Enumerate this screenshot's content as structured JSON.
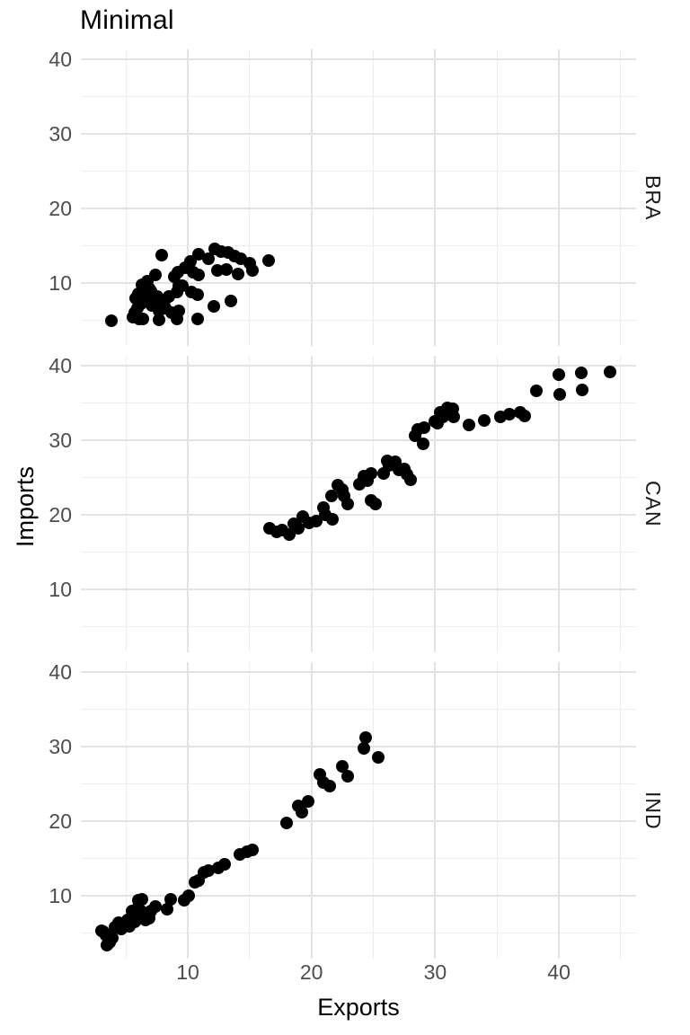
{
  "title": "Minimal",
  "colors": {
    "background": "#ffffff",
    "point": "#000000",
    "grid_major": "#e2e2e2",
    "grid_minor": "#ededed",
    "tick_text": "#4d4d4d",
    "strip_text": "#1a1a1a",
    "title_text": "#000000"
  },
  "chart_data": {
    "type": "scatter",
    "title": "Minimal",
    "xlabel": "Exports",
    "ylabel": "Imports",
    "legend_position": "none",
    "grid": true,
    "facet_axis": "rows",
    "facet_labels": [
      "BRA",
      "CAN",
      "IND"
    ],
    "x_ticks": [
      10,
      20,
      30,
      40
    ],
    "y_ticks": [
      40,
      30,
      20,
      10
    ],
    "x_minor_ticks": [
      5,
      15,
      25,
      35,
      45
    ],
    "y_minor_ticks": [
      35,
      25,
      15,
      5
    ],
    "xlim": [
      1.4,
      46.2
    ],
    "ylim": [
      1.3,
      41.3
    ],
    "series": [
      {
        "name": "BRA",
        "points": [
          [
            3.8,
            4.9
          ],
          [
            5.6,
            5.4
          ],
          [
            5.7,
            6.0
          ],
          [
            5.9,
            6.6
          ],
          [
            6.1,
            5.2
          ],
          [
            6.4,
            5.2
          ],
          [
            6.2,
            7.2
          ],
          [
            6.4,
            7.8
          ],
          [
            6.6,
            8.8
          ],
          [
            6.8,
            7.5
          ],
          [
            6.9,
            9.3
          ],
          [
            7.2,
            8.4
          ],
          [
            7.5,
            8.2
          ],
          [
            7.7,
            6.3
          ],
          [
            7.7,
            5.1
          ],
          [
            7.9,
            6.9
          ],
          [
            8.2,
            6.6
          ],
          [
            8.7,
            6.0
          ],
          [
            9.1,
            5.2
          ],
          [
            8.1,
            7.6
          ],
          [
            8.5,
            8.2
          ],
          [
            9.1,
            8.8
          ],
          [
            6.5,
            9.0
          ],
          [
            7.0,
            8.9
          ],
          [
            6.0,
            8.5
          ],
          [
            6.3,
            9.8
          ],
          [
            6.7,
            10.2
          ],
          [
            5.8,
            7.9
          ],
          [
            7.1,
            7.0
          ],
          [
            8.9,
            10.8
          ],
          [
            7.4,
            11.1
          ],
          [
            7.9,
            13.7
          ],
          [
            9.2,
            11.4
          ],
          [
            9.8,
            12.0
          ],
          [
            9.6,
            9.6
          ],
          [
            9.3,
            9.6
          ],
          [
            9.3,
            6.3
          ],
          [
            10.3,
            8.8
          ],
          [
            10.8,
            8.4
          ],
          [
            10.8,
            5.2
          ],
          [
            12.1,
            6.9
          ],
          [
            13.5,
            7.6
          ],
          [
            10.2,
            12.9
          ],
          [
            10.4,
            11.4
          ],
          [
            10.9,
            11.1
          ],
          [
            10.9,
            13.9
          ],
          [
            11.7,
            13.3
          ],
          [
            12.2,
            14.6
          ],
          [
            12.4,
            11.7
          ],
          [
            12.7,
            14.2
          ],
          [
            13.1,
            11.8
          ],
          [
            13.3,
            14.1
          ],
          [
            13.8,
            13.6
          ],
          [
            14.1,
            11.2
          ],
          [
            14.3,
            13.3
          ],
          [
            15.0,
            12.7
          ],
          [
            15.2,
            11.7
          ],
          [
            16.5,
            13.0
          ]
        ]
      },
      {
        "name": "CAN",
        "points": [
          [
            16.6,
            18.2
          ],
          [
            17.6,
            18.0
          ],
          [
            17.2,
            17.7
          ],
          [
            18.2,
            17.4
          ],
          [
            18.6,
            18.8
          ],
          [
            18.9,
            18.2
          ],
          [
            19.3,
            19.7
          ],
          [
            19.8,
            18.9
          ],
          [
            20.4,
            19.2
          ],
          [
            21.0,
            21.0
          ],
          [
            21.1,
            20.0
          ],
          [
            21.7,
            19.4
          ],
          [
            22.1,
            24.0
          ],
          [
            21.6,
            22.5
          ],
          [
            22.5,
            23.4
          ],
          [
            22.9,
            21.5
          ],
          [
            22.6,
            22.5
          ],
          [
            23.9,
            24.1
          ],
          [
            24.2,
            25.2
          ],
          [
            24.5,
            24.6
          ],
          [
            24.8,
            25.6
          ],
          [
            24.8,
            21.9
          ],
          [
            25.2,
            21.5
          ],
          [
            25.8,
            25.6
          ],
          [
            26.1,
            27.2
          ],
          [
            26.3,
            26.6
          ],
          [
            26.8,
            27.1
          ],
          [
            27.1,
            26.0
          ],
          [
            27.5,
            26.2
          ],
          [
            27.7,
            25.4
          ],
          [
            28.0,
            24.7
          ],
          [
            28.4,
            30.6
          ],
          [
            28.6,
            31.5
          ],
          [
            29.0,
            29.5
          ],
          [
            29.1,
            31.7
          ],
          [
            30.0,
            32.5
          ],
          [
            30.4,
            33.7
          ],
          [
            30.6,
            33.1
          ],
          [
            31.0,
            34.3
          ],
          [
            30.2,
            32.3
          ],
          [
            30.8,
            33.5
          ],
          [
            31.4,
            34.2
          ],
          [
            31.5,
            33.1
          ],
          [
            32.7,
            32.0
          ],
          [
            34.0,
            32.6
          ],
          [
            35.3,
            33.1
          ],
          [
            36.0,
            33.5
          ],
          [
            36.9,
            33.7
          ],
          [
            37.2,
            33.2
          ],
          [
            38.2,
            36.6
          ],
          [
            40.0,
            38.8
          ],
          [
            40.1,
            36.2
          ],
          [
            41.8,
            39.0
          ],
          [
            41.9,
            36.8
          ],
          [
            44.1,
            39.2
          ]
        ]
      },
      {
        "name": "IND",
        "points": [
          [
            3.0,
            5.3
          ],
          [
            3.2,
            5.2
          ],
          [
            3.4,
            4.7
          ],
          [
            3.5,
            3.4
          ],
          [
            3.7,
            3.7
          ],
          [
            3.9,
            4.3
          ],
          [
            4.1,
            5.8
          ],
          [
            4.4,
            6.4
          ],
          [
            4.6,
            5.5
          ],
          [
            4.8,
            6.2
          ],
          [
            5.1,
            6.8
          ],
          [
            5.3,
            5.9
          ],
          [
            5.5,
            7.1
          ],
          [
            5.5,
            8.0
          ],
          [
            5.7,
            6.5
          ],
          [
            5.9,
            8.3
          ],
          [
            6.0,
            9.4
          ],
          [
            6.1,
            7.0
          ],
          [
            6.2,
            8.0
          ],
          [
            6.3,
            9.5
          ],
          [
            6.4,
            7.6
          ],
          [
            6.6,
            6.8
          ],
          [
            6.9,
            7.0
          ],
          [
            7.0,
            8.0
          ],
          [
            7.4,
            8.6
          ],
          [
            8.3,
            8.2
          ],
          [
            8.6,
            9.5
          ],
          [
            9.7,
            9.4
          ],
          [
            10.1,
            10.0
          ],
          [
            10.6,
            11.8
          ],
          [
            10.9,
            12.1
          ],
          [
            11.3,
            13.1
          ],
          [
            11.7,
            13.4
          ],
          [
            12.5,
            13.7
          ],
          [
            13.0,
            14.2
          ],
          [
            14.2,
            15.5
          ],
          [
            14.8,
            15.9
          ],
          [
            15.2,
            16.1
          ],
          [
            18.0,
            19.8
          ],
          [
            18.9,
            22.1
          ],
          [
            19.2,
            21.2
          ],
          [
            19.7,
            22.7
          ],
          [
            20.7,
            26.3
          ],
          [
            21.0,
            25.2
          ],
          [
            21.5,
            24.7
          ],
          [
            22.5,
            27.4
          ],
          [
            22.9,
            26.0
          ],
          [
            24.2,
            29.7
          ],
          [
            24.4,
            31.2
          ],
          [
            25.4,
            28.6
          ]
        ]
      }
    ]
  }
}
